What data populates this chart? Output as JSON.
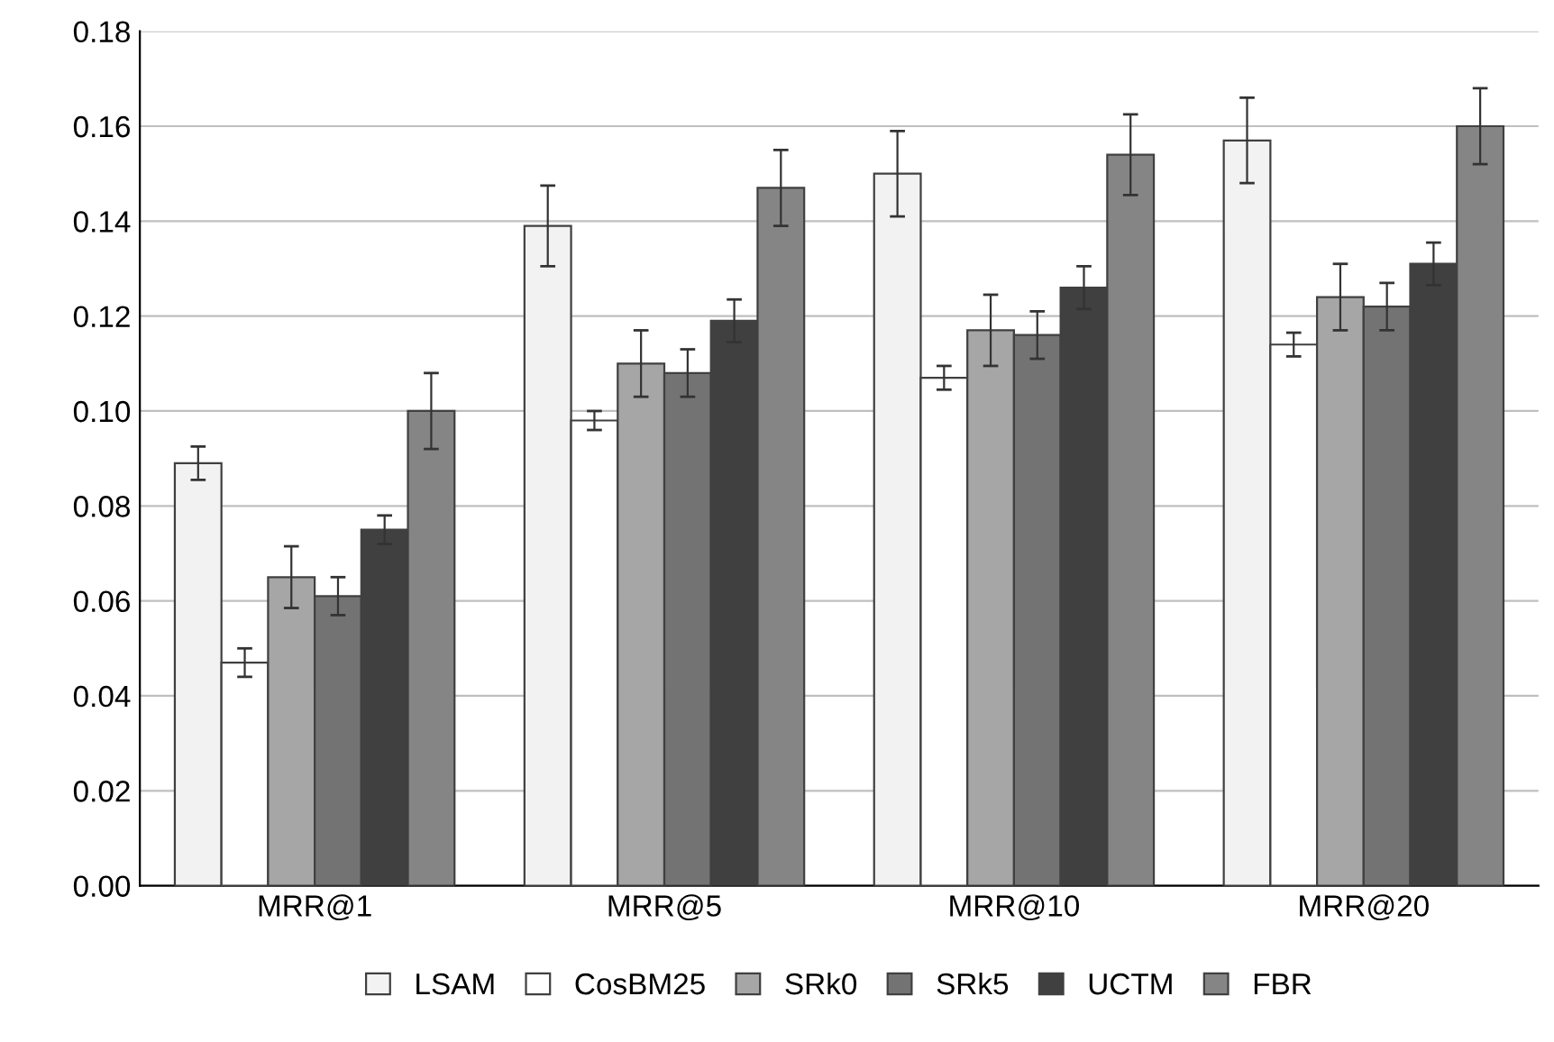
{
  "chart_data": {
    "type": "bar",
    "categories": [
      "MRR@1",
      "MRR@5",
      "MRR@10",
      "MRR@20"
    ],
    "series": [
      {
        "name": "LSAM",
        "color": "#f2f2f2",
        "values": [
          0.089,
          0.139,
          0.15,
          0.157
        ],
        "errors": [
          0.0035,
          0.0085,
          0.009,
          0.009
        ]
      },
      {
        "name": "CosBM25",
        "color": "#ffffff",
        "values": [
          0.047,
          0.098,
          0.107,
          0.114
        ],
        "errors": [
          0.003,
          0.002,
          0.0025,
          0.0025
        ]
      },
      {
        "name": "SRk0",
        "color": "#a6a6a6",
        "values": [
          0.065,
          0.11,
          0.117,
          0.124
        ],
        "errors": [
          0.0065,
          0.007,
          0.0075,
          0.007
        ]
      },
      {
        "name": "SRk5",
        "color": "#737373",
        "values": [
          0.061,
          0.108,
          0.116,
          0.122
        ],
        "errors": [
          0.004,
          0.005,
          0.005,
          0.005
        ]
      },
      {
        "name": "UCTM",
        "color": "#404040",
        "values": [
          0.075,
          0.119,
          0.126,
          0.131
        ],
        "errors": [
          0.003,
          0.0045,
          0.0045,
          0.0045
        ]
      },
      {
        "name": "FBR",
        "color": "#858585",
        "values": [
          0.1,
          0.147,
          0.154,
          0.16
        ],
        "errors": [
          0.008,
          0.008,
          0.0085,
          0.008
        ]
      }
    ],
    "ylim": [
      0,
      0.18
    ],
    "yticks": [
      {
        "value": 0,
        "label": "0.00"
      },
      {
        "value": 0.02,
        "label": "0.02"
      },
      {
        "value": 0.04,
        "label": "0.04"
      },
      {
        "value": 0.06,
        "label": "0.06"
      },
      {
        "value": 0.08,
        "label": "0.08"
      },
      {
        "value": 0.1,
        "label": "0.10"
      },
      {
        "value": 0.12,
        "label": "0.12"
      },
      {
        "value": 0.14,
        "label": "0.14"
      },
      {
        "value": 0.16,
        "label": "0.16"
      },
      {
        "value": 0.18,
        "label": "0.18"
      }
    ],
    "grid": "y",
    "legend": "bottom"
  }
}
